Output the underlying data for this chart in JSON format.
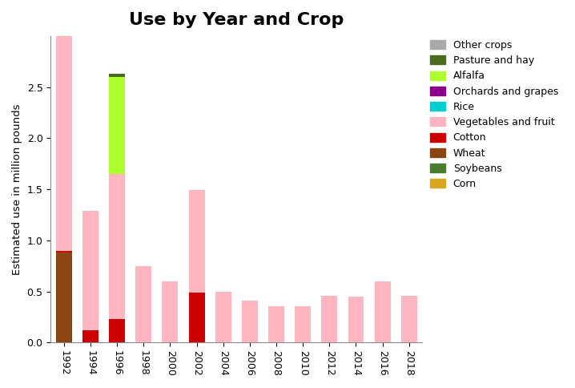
{
  "title": "Use by Year and Crop",
  "ylabel": "Estimated use in million pounds",
  "years": [
    1992,
    1994,
    1996,
    1998,
    2000,
    2002,
    2004,
    2006,
    2008,
    2010,
    2012,
    2014,
    2016,
    2018
  ],
  "categories": [
    "Corn",
    "Soybeans",
    "Wheat",
    "Cotton",
    "Vegetables and fruit",
    "Rice",
    "Orchards and grapes",
    "Alfalfa",
    "Pasture and hay",
    "Other crops"
  ],
  "colors": [
    "#DAA520",
    "#4a7c30",
    "#8B4513",
    "#CC0000",
    "#FFB6C1",
    "#00CED1",
    "#8B008B",
    "#ADFF2F",
    "#4a6a20",
    "#A9A9A9"
  ],
  "data": {
    "Corn": [
      0,
      0,
      0,
      0,
      0,
      0,
      0,
      0,
      0,
      0,
      0,
      0,
      0,
      0
    ],
    "Soybeans": [
      0,
      0,
      0,
      0,
      0,
      0,
      0,
      0,
      0,
      0,
      0,
      0,
      0,
      0
    ],
    "Wheat": [
      0.88,
      0,
      0,
      0,
      0,
      0,
      0,
      0,
      0,
      0,
      0,
      0,
      0,
      0
    ],
    "Cotton": [
      0.02,
      0.12,
      0.23,
      0,
      0,
      0.49,
      0,
      0,
      0,
      0,
      0,
      0,
      0,
      0
    ],
    "Vegetables and fruit": [
      2.27,
      1.17,
      1.42,
      0.75,
      0.6,
      1.0,
      0.5,
      0.41,
      0.36,
      0.36,
      0.46,
      0.45,
      0.6,
      0.46
    ],
    "Rice": [
      0,
      0,
      0,
      0,
      0,
      0,
      0,
      0,
      0,
      0,
      0,
      0,
      0,
      0
    ],
    "Orchards and grapes": [
      0,
      0,
      0,
      0,
      0,
      0,
      0,
      0,
      0,
      0,
      0,
      0,
      0,
      0
    ],
    "Alfalfa": [
      0,
      0,
      0.95,
      0,
      0,
      0,
      0,
      0,
      0,
      0,
      0,
      0,
      0,
      0
    ],
    "Pasture and hay": [
      0,
      0,
      0.03,
      0,
      0,
      0,
      0,
      0,
      0,
      0,
      0,
      0,
      0,
      0
    ],
    "Other crops": [
      0.06,
      0,
      0,
      0,
      0,
      0,
      0,
      0,
      0,
      0,
      0,
      0,
      0,
      0
    ]
  },
  "ylim": [
    0,
    3.0
  ],
  "yticks": [
    0.0,
    0.5,
    1.0,
    1.5,
    2.0,
    2.5
  ],
  "figsize": [
    7.18,
    4.84
  ],
  "dpi": 100,
  "background_color": "#ffffff",
  "grid_color": "#ffffff",
  "legend_order": [
    "Other crops",
    "Pasture and hay",
    "Alfalfa",
    "Orchards and grapes",
    "Rice",
    "Vegetables and fruit",
    "Cotton",
    "Wheat",
    "Soybeans",
    "Corn"
  ]
}
